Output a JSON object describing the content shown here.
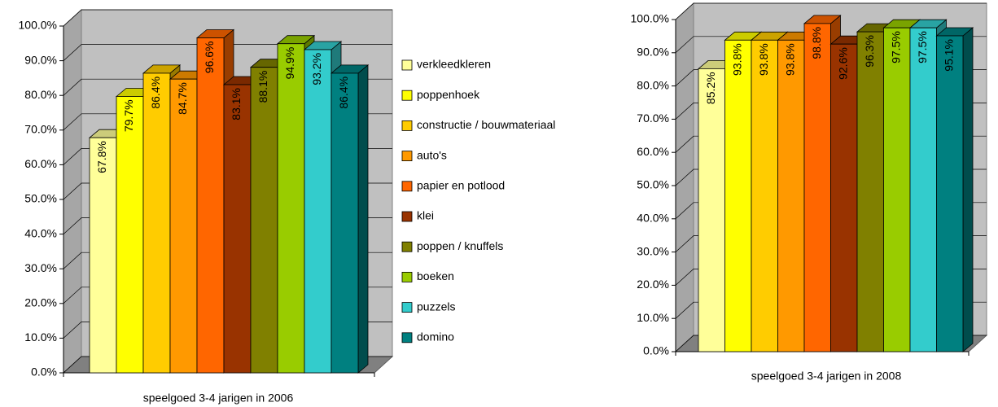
{
  "chart_data": [
    {
      "type": "bar",
      "categories": [
        "speelgoed 3-4 jarigen in 2006"
      ],
      "ylim": [
        0,
        100
      ],
      "yticks": [
        {
          "value": 0,
          "label": "0.0%"
        },
        {
          "value": 10,
          "label": "10.0%"
        },
        {
          "value": 20,
          "label": "20.0%"
        },
        {
          "value": 30,
          "label": "30.0%"
        },
        {
          "value": 40,
          "label": "40.0%"
        },
        {
          "value": 50,
          "label": "50.0%"
        },
        {
          "value": 60,
          "label": "60.0%"
        },
        {
          "value": 70,
          "label": "70.0%"
        },
        {
          "value": 80,
          "label": "80.0%"
        },
        {
          "value": 90,
          "label": "90.0%"
        },
        {
          "value": 100,
          "label": "100.0%"
        }
      ],
      "grid": true,
      "legend": "right",
      "series": [
        {
          "name": "verkleedkleren",
          "color": "#ffff99",
          "values": [
            67.8
          ],
          "value_labels": [
            "67.8%"
          ]
        },
        {
          "name": "poppenhoek",
          "color": "#ffff00",
          "values": [
            79.7
          ],
          "value_labels": [
            "79.7%"
          ]
        },
        {
          "name": "constructie / bouwmateriaal",
          "color": "#ffcc00",
          "values": [
            86.4
          ],
          "value_labels": [
            "86.4%"
          ]
        },
        {
          "name": "auto's",
          "color": "#ff9900",
          "values": [
            84.7
          ],
          "value_labels": [
            "84.7%"
          ]
        },
        {
          "name": "papier en potlood",
          "color": "#ff6600",
          "values": [
            96.6
          ],
          "value_labels": [
            "96.6%"
          ]
        },
        {
          "name": "klei",
          "color": "#993300",
          "values": [
            83.1
          ],
          "value_labels": [
            "83.1%"
          ]
        },
        {
          "name": "poppen / knuffels",
          "color": "#808000",
          "values": [
            88.1
          ],
          "value_labels": [
            "88.1%"
          ]
        },
        {
          "name": "boeken",
          "color": "#99cc00",
          "values": [
            94.9
          ],
          "value_labels": [
            "94.9%"
          ]
        },
        {
          "name": "puzzels",
          "color": "#33cccc",
          "values": [
            93.2
          ],
          "value_labels": [
            "93.2%"
          ]
        },
        {
          "name": "domino",
          "color": "#008080",
          "values": [
            86.4
          ],
          "value_labels": [
            "86.4%"
          ]
        }
      ]
    },
    {
      "type": "bar",
      "categories": [
        "speelgoed 3-4 jarigen in 2008"
      ],
      "ylim": [
        0,
        100
      ],
      "yticks": [
        {
          "value": 0,
          "label": "0.0%"
        },
        {
          "value": 10,
          "label": "10.0%"
        },
        {
          "value": 20,
          "label": "20.0%"
        },
        {
          "value": 30,
          "label": "30.0%"
        },
        {
          "value": 40,
          "label": "40.0%"
        },
        {
          "value": 50,
          "label": "50.0%"
        },
        {
          "value": 60,
          "label": "60.0%"
        },
        {
          "value": 70,
          "label": "70.0%"
        },
        {
          "value": 80,
          "label": "80.0%"
        },
        {
          "value": 90,
          "label": "90.0%"
        },
        {
          "value": 100,
          "label": "100.0%"
        }
      ],
      "grid": true,
      "series": [
        {
          "color": "#ffff99",
          "values": [
            85.2
          ],
          "value_labels": [
            "85.2%"
          ]
        },
        {
          "color": "#ffff00",
          "values": [
            93.8
          ],
          "value_labels": [
            "93.8%"
          ]
        },
        {
          "color": "#ffcc00",
          "values": [
            93.8
          ],
          "value_labels": [
            "93.8%"
          ]
        },
        {
          "color": "#ff9900",
          "values": [
            93.8
          ],
          "value_labels": [
            "93.8%"
          ]
        },
        {
          "color": "#ff6600",
          "values": [
            98.8
          ],
          "value_labels": [
            "98.8%"
          ]
        },
        {
          "color": "#993300",
          "values": [
            92.6
          ],
          "value_labels": [
            "92.6%"
          ]
        },
        {
          "color": "#808000",
          "values": [
            96.3
          ],
          "value_labels": [
            "96.3%"
          ]
        },
        {
          "color": "#99cc00",
          "values": [
            97.5
          ],
          "value_labels": [
            "97.5%"
          ]
        },
        {
          "color": "#33cccc",
          "values": [
            97.5
          ],
          "value_labels": [
            "97.5%"
          ]
        },
        {
          "color": "#008080",
          "values": [
            95.1
          ],
          "value_labels": [
            "95.1%"
          ]
        }
      ]
    }
  ]
}
